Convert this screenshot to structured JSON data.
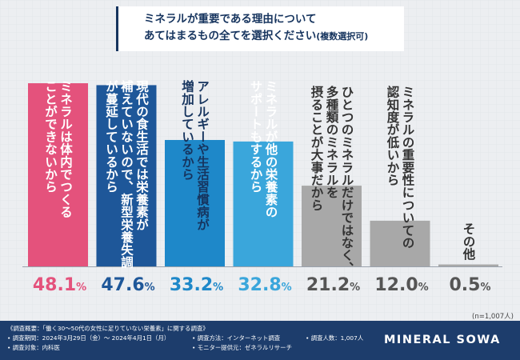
{
  "title": {
    "line1": "ミネラルが重要である理由について",
    "line2": "あてはまるもの全てを選択ください",
    "line2_note": "(複数選択可)"
  },
  "chart_data": {
    "type": "bar",
    "title": "ミネラルが重要である理由について あてはまるもの全てを選択ください(複数選択可)",
    "categories": [
      "ミネラルは体内でつくることができないから",
      "現代の食生活では栄養素が補えていないので、新型栄養失調が蔓延しているから",
      "アレルギーや生活習慣病が増加しているから",
      "ミネラルが他の栄養素のサポートもするから",
      "ひとつのミネラルだけではなく、多種類のミネラルを摂ることが大事だから",
      "ミネラルの重要性についての認知度が低いから",
      "その他"
    ],
    "label_columns": [
      [
        "ミネラルは体内でつくる",
        "ことができないから"
      ],
      [
        "現代の食生活では栄養素が",
        "補えていないので、新型栄養失調",
        "が蔓延しているから"
      ],
      [
        "アレルギーや生活習慣病が",
        "増加しているから"
      ],
      [
        "ミネラルが他の栄養素の",
        "サポートもするから"
      ],
      [
        "ひとつのミネラルだけではなく、",
        "多種類のミネラルを",
        "摂ることが大事だから"
      ],
      [
        "ミネラルの重要性についての",
        "認知度が低いから"
      ],
      [
        "その他"
      ]
    ],
    "values": [
      48.1,
      47.6,
      33.2,
      32.8,
      21.2,
      12.0,
      0.5
    ],
    "value_labels": [
      "48.1",
      "47.6",
      "33.2",
      "32.8",
      "21.2",
      "12.0",
      "0.5"
    ],
    "unit": "%",
    "ylim": [
      0,
      50
    ],
    "colors": [
      "#e4527c",
      "#1e5799",
      "#1e88c9",
      "#3aa6db",
      "#a8a8a8",
      "#a8a8a8",
      "#a8a8a8"
    ],
    "label_colors": [
      "#ffffff",
      "#ffffff",
      "#16345e",
      "#ffffff",
      "#333333",
      "#333333",
      "#333333"
    ],
    "value_colors": [
      "#e4527c",
      "#1e5799",
      "#1e88c9",
      "#3aa6db",
      "#555555",
      "#555555",
      "#555555"
    ]
  },
  "n_note": "(n=1,007人)",
  "footer": {
    "survey_summary": "《調査概要：「働く30〜50代の女性に足りていない栄養素」に関する調査》",
    "survey_period": "• 調査期間：2024年3月29日（金）〜 2024年4月1日（月）",
    "survey_method": "• 調査方法：インターネット調査",
    "sample_size": "• 調査人数：1,007人",
    "survey_target": "• 調査対象：内科医",
    "panel_provider": "• モニター提供元：ゼネラルリサーチ",
    "brand": "MINERAL SOWA"
  }
}
